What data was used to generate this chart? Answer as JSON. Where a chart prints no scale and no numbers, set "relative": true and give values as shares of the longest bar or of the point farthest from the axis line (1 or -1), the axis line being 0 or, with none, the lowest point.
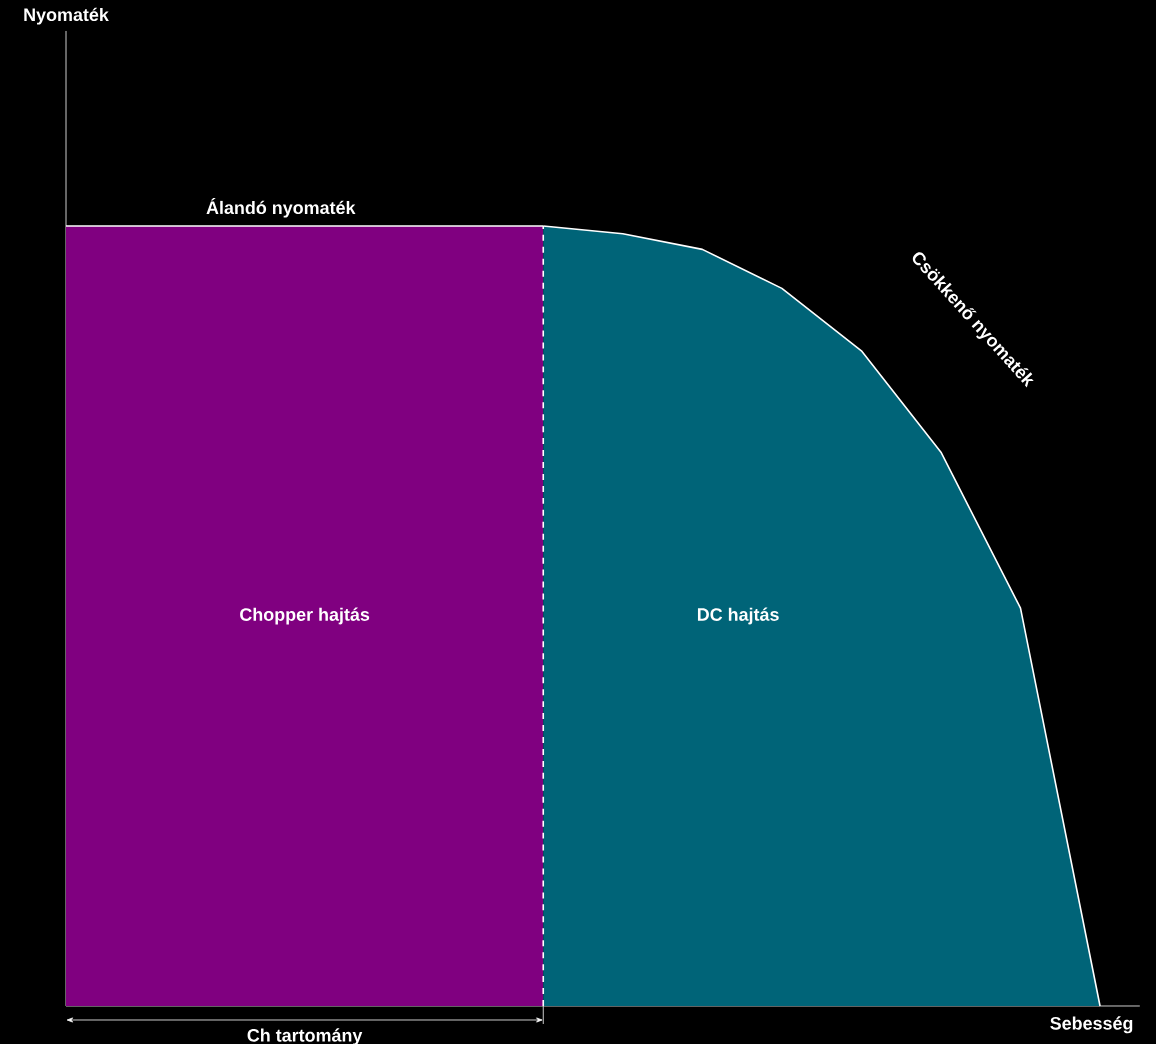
{
  "chart_data": {
    "type": "area",
    "relative": true,
    "xlabel": "Sebesség",
    "categories": [
      null,
      null,
      null,
      null,
      null,
      null,
      null,
      null,
      null,
      null,
      null,
      null,
      null,
      null
    ],
    "series": [
      {
        "name": "Chopper hajtás",
        "color": "#800080",
        "values": [
          1,
          1,
          1,
          1,
          1,
          1,
          1,
          null,
          null,
          null,
          null,
          null,
          null,
          null
        ]
      },
      {
        "name": "DC hajtás",
        "color": "#006478",
        "values": [
          null,
          null,
          null,
          null,
          null,
          null,
          1,
          0.99,
          0.97,
          0.92,
          0.84,
          0.71,
          0.51,
          0
        ]
      }
    ],
    "annotations": [
      "Álandó nyomaték",
      "Csökkenő nyomaték",
      "Ch tartomány",
      "Nyomaték"
    ]
  }
}
